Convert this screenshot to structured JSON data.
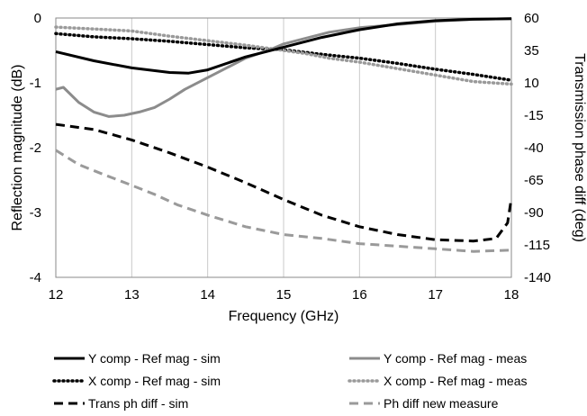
{
  "chart_data": {
    "type": "line",
    "xlabel": "Frequency (GHz)",
    "ylabel_left": "Reflection magnitude (dB)",
    "ylabel_right": "Transmission phase diff (deg)",
    "xlim": [
      12,
      18
    ],
    "ylim_left": [
      -4,
      0
    ],
    "ylim_right": [
      -140,
      60
    ],
    "x_ticks": [
      "12",
      "13",
      "14",
      "15",
      "16",
      "17",
      "18"
    ],
    "y_left_ticks": [
      "0",
      "-1",
      "-2",
      "-3",
      "-4"
    ],
    "y_right_ticks": [
      "60",
      "35",
      "10",
      "-15",
      "-40",
      "-65",
      "-90",
      "-115",
      "-140"
    ],
    "grid": "vertical",
    "legend_position": "bottom",
    "series": [
      {
        "name": "Y comp - Ref mag - sim",
        "axis": "left",
        "color": "#000000",
        "style": "solid",
        "x": [
          12,
          12.5,
          13,
          13.5,
          13.75,
          14,
          14.5,
          15,
          15.5,
          16,
          16.5,
          17,
          17.5,
          18
        ],
        "y": [
          -0.52,
          -0.66,
          -0.77,
          -0.84,
          -0.85,
          -0.8,
          -0.6,
          -0.45,
          -0.3,
          -0.18,
          -0.09,
          -0.04,
          -0.02,
          -0.01
        ]
      },
      {
        "name": "Y comp - Ref mag - meas",
        "axis": "left",
        "color": "#8c8c8c",
        "style": "solid",
        "x": [
          12,
          12.1,
          12.3,
          12.5,
          12.7,
          12.9,
          13.1,
          13.3,
          13.5,
          13.7,
          13.9,
          14,
          14.2,
          14.5,
          14.8,
          15,
          15.3,
          15.6,
          16,
          16.5,
          17,
          17.5,
          18
        ],
        "y": [
          -1.1,
          -1.07,
          -1.3,
          -1.45,
          -1.52,
          -1.5,
          -1.45,
          -1.38,
          -1.25,
          -1.1,
          -0.98,
          -0.92,
          -0.8,
          -0.62,
          -0.5,
          -0.4,
          -0.31,
          -0.22,
          -0.15,
          -0.1,
          -0.05,
          -0.02,
          -0.01
        ]
      },
      {
        "name": "X comp - Ref mag - sim",
        "axis": "left",
        "color": "#000000",
        "style": "dotted",
        "x": [
          12,
          12.5,
          13,
          13.5,
          14,
          14.5,
          15,
          15.5,
          16,
          16.5,
          17,
          17.5,
          18
        ],
        "y": [
          -0.24,
          -0.29,
          -0.32,
          -0.36,
          -0.41,
          -0.46,
          -0.49,
          -0.56,
          -0.62,
          -0.7,
          -0.79,
          -0.87,
          -0.96
        ]
      },
      {
        "name": "X comp - Ref mag - meas",
        "axis": "left",
        "color": "#9a9a9a",
        "style": "dotted",
        "x": [
          12,
          12.5,
          13,
          13.5,
          14,
          14.5,
          15,
          15.3,
          15.6,
          16,
          16.5,
          17,
          17.5,
          18
        ],
        "y": [
          -0.14,
          -0.17,
          -0.2,
          -0.28,
          -0.35,
          -0.42,
          -0.5,
          -0.55,
          -0.62,
          -0.68,
          -0.78,
          -0.88,
          -0.98,
          -1.02
        ]
      },
      {
        "name": "Trans ph diff - sim",
        "axis": "right",
        "color": "#000000",
        "style": "dashed",
        "x": [
          12,
          12.5,
          13,
          13.5,
          14,
          14.5,
          15,
          15.5,
          16,
          16.5,
          17,
          17.5,
          17.8,
          17.95,
          18
        ],
        "y": [
          -22,
          -26,
          -34,
          -44,
          -55,
          -67,
          -80,
          -92,
          -101,
          -107,
          -111,
          -112,
          -110,
          -98,
          -79
        ]
      },
      {
        "name": "Ph diff new measure",
        "axis": "right",
        "color": "#9a9a9a",
        "style": "dashed",
        "x": [
          12,
          12.3,
          12.6,
          13,
          13.3,
          13.6,
          14,
          14.5,
          15,
          15.5,
          16,
          16.5,
          17,
          17.5,
          18
        ],
        "y": [
          -42,
          -53,
          -60,
          -69,
          -76,
          -84,
          -92,
          -101,
          -107,
          -110,
          -114,
          -116,
          -118,
          -120,
          -119
        ]
      }
    ]
  }
}
